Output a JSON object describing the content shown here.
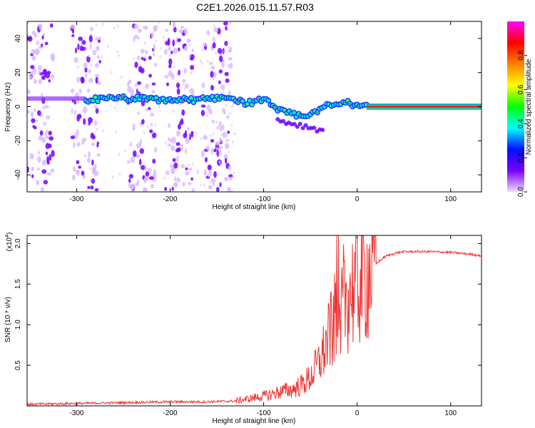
{
  "title": "C2E1.2026.015.11.57.R03",
  "chart_data": [
    {
      "type": "heatmap",
      "xlabel": "Height of straight line (km)",
      "ylabel": "Frequency (Hz)",
      "xlim": [
        -353,
        133
      ],
      "ylim": [
        -50,
        50
      ],
      "x_ticks": [
        -300,
        -200,
        -100,
        0,
        100
      ],
      "y_ticks": [
        -40,
        -20,
        0,
        20,
        40
      ],
      "colorbar": {
        "label": "Normalized spectral amplitude",
        "range": [
          0,
          1
        ],
        "ticks": [
          "0.0",
          "0.2",
          "0.4",
          "0.6",
          "0.8"
        ],
        "colors": [
          "#f0dcff",
          "#7a00ff",
          "#0010ff",
          "#00ffff",
          "#00ff00",
          "#ffff00",
          "#ff8000",
          "#ff0000",
          "#ff00ff"
        ]
      },
      "ridge": {
        "x": [
          -290,
          -250,
          -210,
          -170,
          -140,
          -120,
          -100,
          -80,
          -60,
          -45,
          -30,
          -10,
          0,
          20,
          60,
          133
        ],
        "y": [
          4,
          5,
          4,
          4,
          6,
          2,
          4,
          -3,
          -6,
          -3,
          1,
          2,
          1,
          0,
          0,
          0
        ]
      },
      "noise_bands_x": [
        -340,
        -290,
        -230,
        -190,
        -150
      ]
    },
    {
      "type": "line",
      "xlabel": "Height of straight line (km)",
      "ylabel": "SNR (10 * v/v)",
      "y_multiplier": "(x10^4)",
      "y_multiplier_text": "(x10",
      "y_multiplier_exp": "4",
      "xlim": [
        -353,
        133
      ],
      "ylim": [
        0,
        2.1
      ],
      "x_ticks": [
        -300,
        -200,
        -100,
        0,
        100
      ],
      "y_ticks": [
        0.5,
        1.0,
        1.5,
        2.0
      ],
      "y_tick_labels": [
        "0.5",
        "1.0",
        "1.5",
        "2.0"
      ],
      "series_color": "#ee3333",
      "series": [
        {
          "x": [
            -353,
            -300,
            -250,
            -200,
            -160,
            -130,
            -110,
            -100,
            -90,
            -80,
            -70,
            -60,
            -50,
            -40,
            -30,
            -20,
            -10,
            0,
            10,
            20,
            30,
            40,
            50,
            60,
            80,
            100,
            120,
            133
          ],
          "y": [
            0.02,
            0.03,
            0.04,
            0.05,
            0.05,
            0.06,
            0.1,
            0.12,
            0.15,
            0.18,
            0.2,
            0.25,
            0.35,
            0.55,
            0.85,
            1.2,
            1.4,
            1.5,
            1.62,
            1.75,
            1.84,
            1.88,
            1.9,
            1.9,
            1.9,
            1.89,
            1.87,
            1.85
          ]
        }
      ]
    }
  ]
}
